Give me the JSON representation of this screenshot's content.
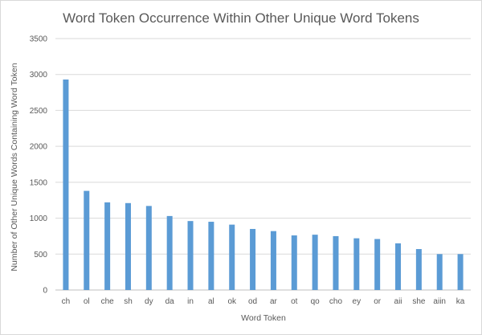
{
  "chart_data": {
    "type": "bar",
    "title": "Word Token Occurrence Within Other Unique Word Tokens",
    "xlabel": "Word Token",
    "ylabel": "Number of Other Unique Words Containing Word Token",
    "ylim": [
      0,
      3500
    ],
    "yticks": [
      0,
      500,
      1000,
      1500,
      2000,
      2500,
      3000,
      3500
    ],
    "grid": true,
    "legend": "none",
    "bar_color": "#5b9bd5",
    "categories": [
      "ch",
      "ol",
      "che",
      "sh",
      "dy",
      "da",
      "in",
      "al",
      "ok",
      "od",
      "ar",
      "ot",
      "qo",
      "cho",
      "ey",
      "or",
      "aii",
      "she",
      "aiin",
      "ka"
    ],
    "values": [
      2930,
      1380,
      1220,
      1210,
      1170,
      1030,
      960,
      950,
      910,
      850,
      820,
      760,
      770,
      750,
      720,
      710,
      650,
      570,
      500,
      500
    ]
  }
}
